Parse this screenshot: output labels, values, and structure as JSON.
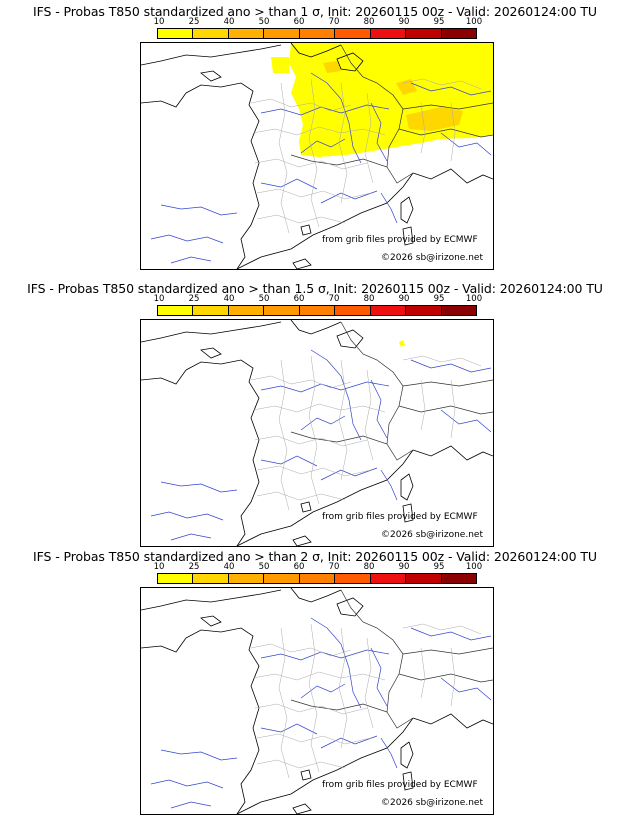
{
  "colorbar": {
    "labels": [
      "10",
      "25",
      "40",
      "50",
      "60",
      "70",
      "80",
      "90",
      "95",
      "100"
    ],
    "colors": [
      "#ffff00",
      "#ffd700",
      "#ffb000",
      "#ff9a00",
      "#ff7f00",
      "#ff5a00",
      "#ee1010",
      "#c00000",
      "#8b0000",
      "#5a0000"
    ]
  },
  "panels": [
    {
      "title": "IFS - Probas T850  standardized ano > than 1 σ, Init: 20260115 00z - Valid: 20260124:00 TU",
      "credit_source": "from grib files provided by ECMWF",
      "credit_copyright": "©2026 sb@irizone.net"
    },
    {
      "title": "IFS - Probas T850  standardized ano > than 1.5 σ, Init: 20260115 00z - Valid: 20260124:00 TU",
      "credit_source": "from grib files provided by ECMWF",
      "credit_copyright": "©2026 sb@irizone.net"
    },
    {
      "title": "IFS - Probas T850  standardized ano > than 2 σ, Init: 20260115 00z - Valid: 20260124:00 TU",
      "credit_source": "from grib files provided by ECMWF",
      "credit_copyright": "©2026 sb@irizone.net"
    }
  ]
}
